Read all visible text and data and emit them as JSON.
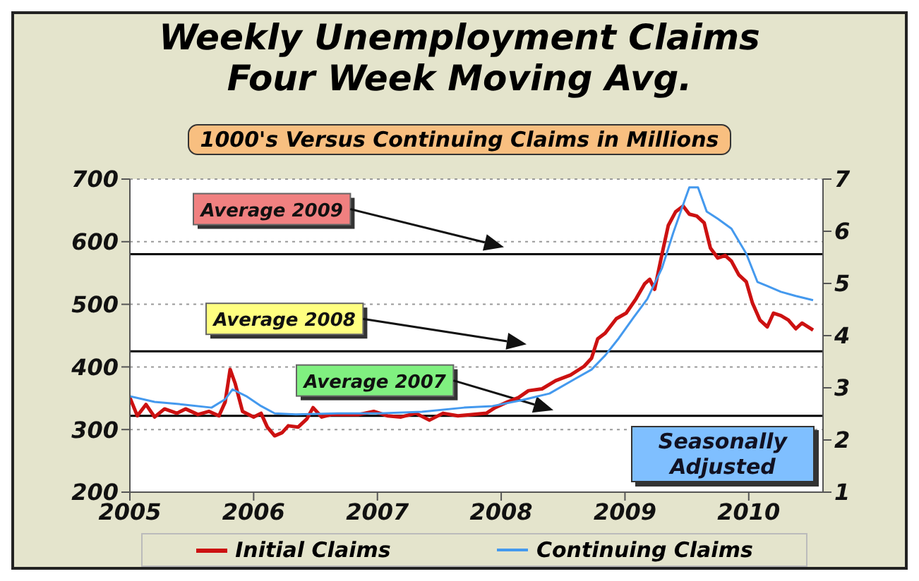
{
  "chart_data": {
    "type": "line",
    "title": "Weekly Unemployment Claims Four Week Moving Avg.",
    "subtitle": "1000's Versus Continuing Claims in Millions",
    "xlim": [
      2005,
      2010.6
    ],
    "xticks": [
      2005,
      2006,
      2007,
      2008,
      2009,
      2010
    ],
    "ylim": [
      200,
      700
    ],
    "yticks": [
      200,
      300,
      400,
      500,
      600,
      700
    ],
    "y2lim": [
      1,
      7
    ],
    "y2ticks": [
      1,
      2,
      3,
      4,
      5,
      6,
      7
    ],
    "grid": "y",
    "legend": "bottom",
    "marker": "none",
    "line_style": "solid",
    "annotations": [
      "Seasonally Adjusted"
    ],
    "ref_lines": [
      {
        "axis": "y",
        "value": 580,
        "label": "Average 2009",
        "color": "#000000"
      },
      {
        "axis": "y",
        "value": 425,
        "label": "Average 2008",
        "color": "#000000"
      },
      {
        "axis": "y",
        "value": 322,
        "label": "Average 2007",
        "color": "#000000"
      }
    ],
    "series": [
      {
        "name": "Initial Claims",
        "color": "#cc1111",
        "x": [
          2005.0,
          2005.06,
          2005.13,
          2005.2,
          2005.28,
          2005.38,
          2005.45,
          2005.55,
          2005.64,
          2005.72,
          2005.77,
          2005.81,
          2005.85,
          2005.91,
          2006.0,
          2006.06,
          2006.11,
          2006.17,
          2006.23,
          2006.28,
          2006.36,
          2006.43,
          2006.48,
          2006.55,
          2006.63,
          2006.74,
          2006.85,
          2006.97,
          2007.08,
          2007.19,
          2007.31,
          2007.42,
          2007.53,
          2007.65,
          2007.76,
          2007.88,
          2007.95,
          2008.05,
          2008.14,
          2008.22,
          2008.33,
          2008.44,
          2008.56,
          2008.67,
          2008.73,
          2008.78,
          2008.84,
          2008.93,
          2009.01,
          2009.09,
          2009.16,
          2009.2,
          2009.24,
          2009.3,
          2009.35,
          2009.41,
          2009.47,
          2009.52,
          2009.58,
          2009.64,
          2009.69,
          2009.75,
          2009.81,
          2009.86,
          2009.92,
          2009.98,
          2010.03,
          2010.09,
          2010.15,
          2010.2,
          2010.26,
          2010.32,
          2010.38,
          2010.43,
          2010.52
        ],
        "values": [
          351,
          322,
          340,
          320,
          333,
          326,
          333,
          324,
          329,
          322,
          344,
          396,
          374,
          329,
          320,
          326,
          304,
          290,
          295,
          306,
          304,
          317,
          335,
          320,
          324,
          324,
          324,
          329,
          322,
          320,
          326,
          315,
          326,
          322,
          324,
          326,
          335,
          344,
          351,
          362,
          365,
          378,
          387,
          401,
          414,
          445,
          454,
          477,
          486,
          509,
          533,
          540,
          524,
          581,
          626,
          648,
          657,
          644,
          641,
          630,
          590,
          574,
          578,
          569,
          547,
          536,
          502,
          475,
          464,
          486,
          482,
          475,
          461,
          470,
          459
        ]
      },
      {
        "name": "Continuing Claims",
        "color": "#4499ee",
        "axis": "y2",
        "x": [
          2005.0,
          2005.2,
          2005.43,
          2005.66,
          2005.77,
          2005.83,
          2005.94,
          2006.06,
          2006.17,
          2006.34,
          2006.68,
          2007.02,
          2007.36,
          2007.7,
          2007.93,
          2008.16,
          2008.39,
          2008.61,
          2008.73,
          2008.84,
          2008.95,
          2009.07,
          2009.18,
          2009.3,
          2009.39,
          2009.47,
          2009.52,
          2009.59,
          2009.66,
          2009.75,
          2009.86,
          2009.98,
          2010.07,
          2010.15,
          2010.26,
          2010.38,
          2010.52
        ],
        "values": [
          2.84,
          2.73,
          2.68,
          2.62,
          2.78,
          2.97,
          2.84,
          2.65,
          2.51,
          2.49,
          2.51,
          2.51,
          2.54,
          2.62,
          2.65,
          2.76,
          2.89,
          3.19,
          3.35,
          3.62,
          3.95,
          4.35,
          4.7,
          5.3,
          5.97,
          6.51,
          6.84,
          6.84,
          6.38,
          6.24,
          6.05,
          5.57,
          5.03,
          4.95,
          4.84,
          4.76,
          4.68
        ]
      }
    ]
  }
}
